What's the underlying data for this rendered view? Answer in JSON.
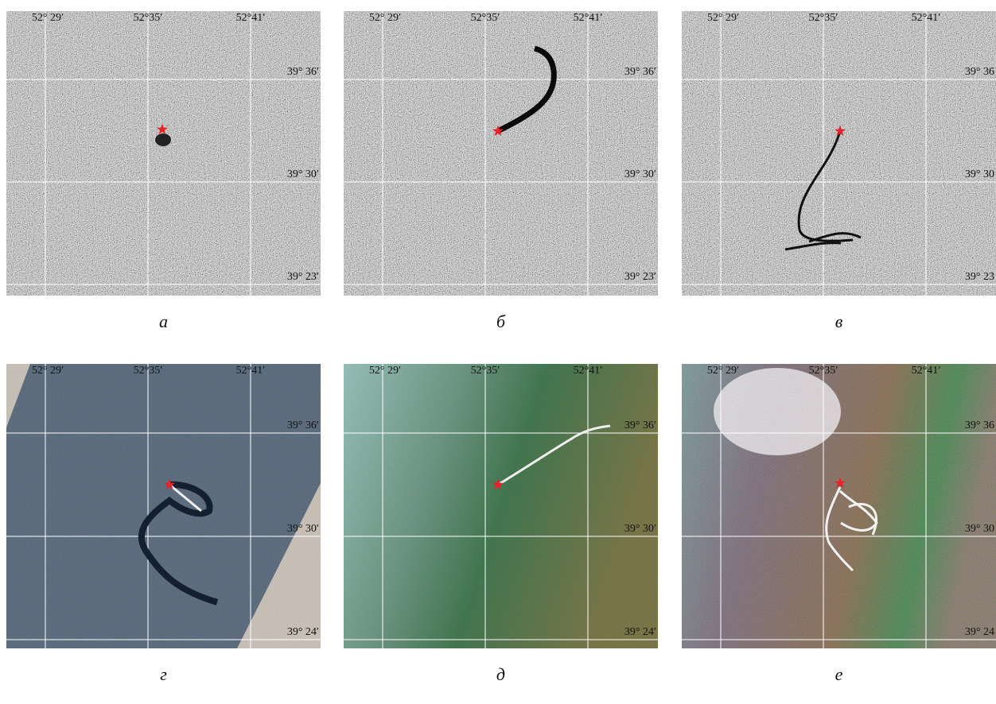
{
  "panels": [
    {
      "label": "а",
      "lon_labels": [
        "52° 29′",
        "52°35′",
        "52°41′"
      ],
      "lat_labels": [
        "39° 36′",
        "39° 30′",
        "39° 23′"
      ]
    },
    {
      "label": "б",
      "lon_labels": [
        "52° 29′",
        "52°35′",
        "52°41′"
      ],
      "lat_labels": [
        "39° 36′",
        "39° 30′",
        "39° 23′"
      ]
    },
    {
      "label": "в",
      "lon_labels": [
        "52° 29′",
        "52°35′",
        "52°41′"
      ],
      "lat_labels": [
        "39° 36",
        "39° 30",
        "39° 23"
      ]
    },
    {
      "label": "г",
      "lon_labels": [
        "52° 29′",
        "52°35′",
        "52°41′"
      ],
      "lat_labels": [
        "39° 36′",
        "39° 30′",
        "39° 24′"
      ]
    },
    {
      "label": "д",
      "lon_labels": [
        "52° 29′",
        "52°35′",
        "52°41′"
      ],
      "lat_labels": [
        "39° 36′",
        "39° 30′",
        "39° 24′"
      ]
    },
    {
      "label": "е",
      "lon_labels": [
        "52° 29′",
        "52°35′",
        "52°41′"
      ],
      "lat_labels": [
        "39° 36",
        "39° 30",
        "39° 24"
      ]
    }
  ]
}
